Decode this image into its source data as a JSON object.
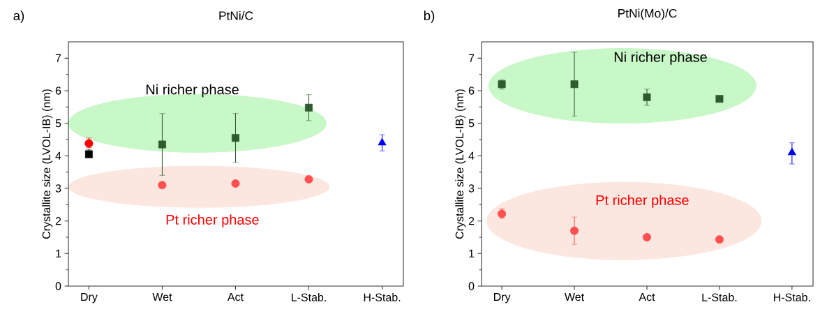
{
  "chart_data": [
    {
      "type": "scatter",
      "title": "PtNi/C",
      "ylabel": "Crystallite size (LVOL-IB) (nm)",
      "categories": [
        "Dry",
        "Wet",
        "Act",
        "L-Stab.",
        "H-Stab."
      ],
      "ylim": [
        0,
        7.5
      ],
      "yticks": [
        0,
        1,
        2,
        3,
        4,
        5,
        6,
        7
      ],
      "annotations": [
        "a)",
        "Ni richer phase",
        "Pt richer phase"
      ],
      "series": [
        {
          "color": "#000000",
          "marker": "square",
          "values": [
            4.05,
            null,
            null,
            null,
            null
          ],
          "errors": [
            [
              3.95,
              4.2
            ],
            null,
            null,
            null,
            null
          ]
        },
        {
          "color": "#2e5a2e",
          "marker": "square",
          "values": [
            null,
            4.35,
            4.55,
            5.48,
            null
          ],
          "errors": [
            null,
            [
              3.4,
              5.3
            ],
            [
              3.8,
              5.3
            ],
            [
              5.08,
              5.88
            ],
            null
          ]
        },
        {
          "color": "#ff0000",
          "marker": "circle",
          "values": [
            4.38,
            null,
            null,
            null,
            null
          ],
          "errors": [
            [
              4.25,
              4.55
            ],
            null,
            null,
            null,
            null
          ]
        },
        {
          "color": "#ff5050",
          "marker": "circle",
          "values": [
            null,
            3.1,
            3.15,
            3.28,
            null
          ]
        },
        {
          "color": "#0000ff",
          "marker": "triangle",
          "values": [
            null,
            null,
            null,
            null,
            4.4
          ],
          "errors": [
            null,
            null,
            null,
            null,
            [
              4.15,
              4.65
            ]
          ]
        }
      ]
    },
    {
      "type": "scatter",
      "title": "PtNi(Mo)/C",
      "ylabel": "Crystallite size (LVOL-IB) (nm)",
      "categories": [
        "Dry",
        "Wet",
        "Act",
        "L-Stab.",
        "H-Stab."
      ],
      "ylim": [
        0,
        7.5
      ],
      "yticks": [
        0,
        1,
        2,
        3,
        4,
        5,
        6,
        7
      ],
      "annotations": [
        "b)",
        "Ni richer phase",
        "Pt richer phase"
      ],
      "series": [
        {
          "color": "#2e5a2e",
          "marker": "square",
          "values": [
            6.2,
            6.2,
            5.8,
            5.75,
            null
          ],
          "errors": [
            [
              6.05,
              6.33
            ],
            [
              5.22,
              7.18
            ],
            [
              5.55,
              6.05
            ],
            null,
            null
          ]
        },
        {
          "color": "#ff5050",
          "marker": "circle",
          "values": [
            2.22,
            1.7,
            1.5,
            1.43,
            null
          ],
          "errors": [
            [
              2.08,
              2.38
            ],
            [
              1.28,
              2.12
            ],
            null,
            null,
            null
          ]
        },
        {
          "color": "#0000ff",
          "marker": "triangle",
          "values": [
            null,
            null,
            null,
            null,
            4.1
          ],
          "errors": [
            null,
            null,
            null,
            null,
            [
              3.75,
              4.4
            ]
          ]
        }
      ]
    }
  ]
}
